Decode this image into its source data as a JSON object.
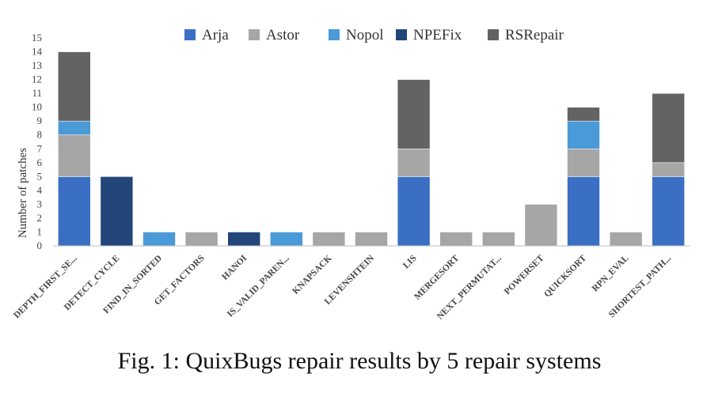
{
  "chart_data": {
    "type": "bar",
    "stacked": true,
    "title": "",
    "xlabel": "",
    "ylabel": "Number of patches",
    "ylim": [
      0,
      15
    ],
    "yticks": [
      0,
      1,
      2,
      3,
      4,
      5,
      6,
      7,
      8,
      9,
      10,
      11,
      12,
      13,
      14,
      15
    ],
    "grid": false,
    "legend_position": "top",
    "categories": [
      "DEPTH_FIRST_SE...",
      "DETECT_CYCLE",
      "FIND_IN_SORTED",
      "GET_FACTORS",
      "HANOI",
      "IS_VALID_PAREN...",
      "KNAPSACK",
      "LEVENSHTEIN",
      "LIS",
      "MERGESORT",
      "NEXT_PERMUTAT...",
      "POWERSET",
      "QUICKSORT",
      "RPN_EVAL",
      "SHORTEST_PATH..."
    ],
    "series": [
      {
        "name": "Arja",
        "color": "#3a6fc4",
        "values": [
          5,
          0,
          0,
          0,
          0,
          0,
          0,
          0,
          5,
          0,
          0,
          0,
          5,
          0,
          5
        ]
      },
      {
        "name": "Astor",
        "color": "#a6a6a6",
        "values": [
          3,
          0,
          0,
          1,
          0,
          0,
          1,
          1,
          2,
          1,
          1,
          3,
          2,
          1,
          1
        ]
      },
      {
        "name": "Nopol",
        "color": "#4a9ad8",
        "values": [
          1,
          0,
          1,
          0,
          0,
          1,
          0,
          0,
          0,
          0,
          0,
          0,
          2,
          0,
          0
        ]
      },
      {
        "name": "NPEFix",
        "color": "#22467a",
        "values": [
          0,
          5,
          0,
          0,
          1,
          0,
          0,
          0,
          0,
          0,
          0,
          0,
          0,
          0,
          0
        ]
      },
      {
        "name": "RSRepair",
        "color": "#636363",
        "values": [
          5,
          0,
          0,
          0,
          0,
          0,
          0,
          0,
          5,
          0,
          0,
          0,
          1,
          0,
          5
        ]
      }
    ]
  },
  "caption": "Fig. 1: QuixBugs repair results by 5 repair systems"
}
